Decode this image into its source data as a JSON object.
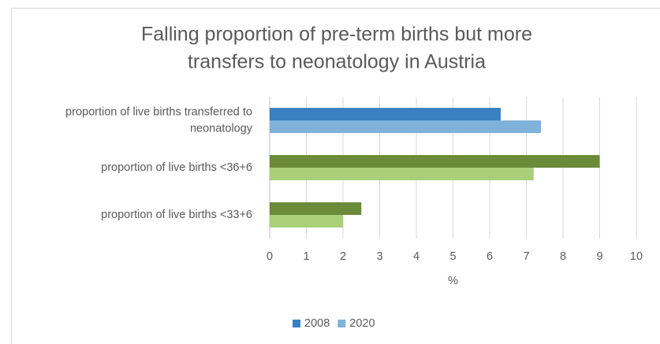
{
  "chart_data": {
    "type": "bar",
    "orientation": "horizontal",
    "title": "Falling proportion of pre-term births but more transfers to neonatology in Austria",
    "categories": [
      "proportion of live births transferred to neonatology",
      "proportion of live births <36+6",
      "proportion of live births <33+6"
    ],
    "series": [
      {
        "name": "2008",
        "color": "#3a80c0",
        "colors": [
          "#3a80c0",
          "#6b8a3a",
          "#6b8a3a"
        ],
        "values": [
          6.3,
          9.0,
          2.5
        ]
      },
      {
        "name": "2020",
        "color": "#7fb2d9",
        "colors": [
          "#7fb2d9",
          "#a9cf78",
          "#a9cf78"
        ],
        "values": [
          7.4,
          7.2,
          2.0
        ]
      }
    ],
    "xlabel": "%",
    "xlim": [
      0,
      10
    ],
    "xticks": [
      0,
      1,
      2,
      3,
      4,
      5,
      6,
      7,
      8,
      9,
      10
    ],
    "grid": true,
    "legend": "bottom"
  }
}
